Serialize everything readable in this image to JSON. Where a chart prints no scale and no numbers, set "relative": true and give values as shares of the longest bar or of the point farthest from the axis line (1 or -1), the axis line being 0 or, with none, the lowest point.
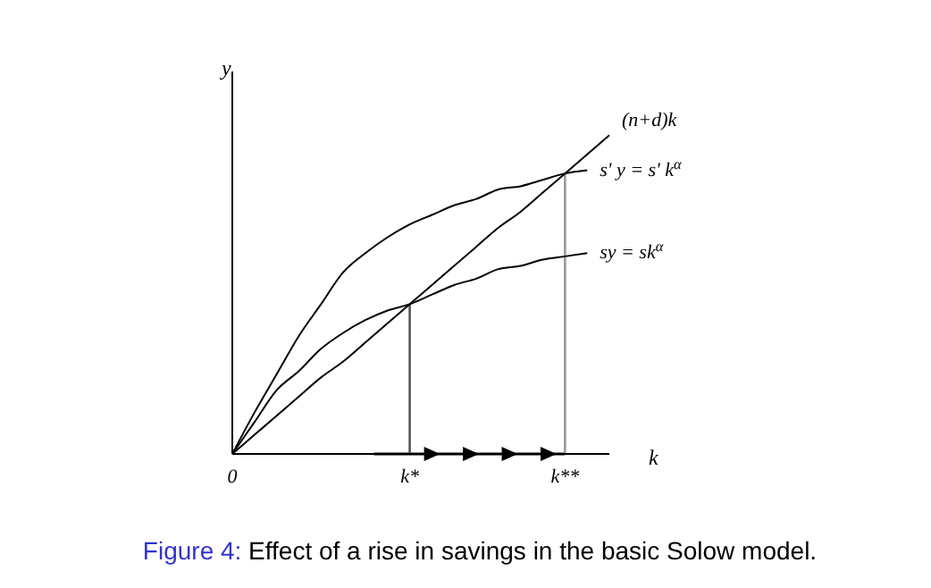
{
  "chart_data": {
    "type": "line",
    "relative": true,
    "xlabel": "k",
    "ylabel": "y",
    "categories": [
      "0",
      null,
      null,
      null,
      null,
      null,
      null,
      null,
      "k*",
      null,
      null,
      null,
      null,
      null,
      null,
      "k**",
      null,
      null
    ],
    "tick_labels": "x",
    "marker": "none",
    "line_style": "solid",
    "series": [
      {
        "name": "(n+d)k",
        "color": "#000000",
        "values": [
          0,
          0.06,
          0.12,
          0.18,
          0.24,
          0.29,
          0.35,
          0.41,
          0.47,
          0.53,
          0.59,
          0.65,
          0.71,
          0.76,
          0.82,
          0.88,
          0.94,
          1
        ]
      },
      {
        "name": "s' y = s' k$^{α}$",
        "color": "#000000",
        "values": [
          0,
          0.13,
          0.25,
          0.37,
          0.47,
          0.57,
          0.63,
          0.68,
          0.72,
          0.75,
          0.78,
          0.8,
          0.83,
          0.84,
          0.86,
          0.88,
          0.89,
          null
        ]
      },
      {
        "name": "sy = sk$^{α}$",
        "color": "#000000",
        "values": [
          0,
          0.1,
          0.2,
          0.26,
          0.33,
          0.38,
          0.42,
          0.45,
          0.47,
          0.5,
          0.53,
          0.55,
          0.58,
          0.59,
          0.61,
          0.62,
          0.63,
          null
        ]
      }
    ],
    "ref_lines": [
      {
        "axis": "x",
        "value": "k*",
        "color": "#555555"
      },
      {
        "axis": "x",
        "value": "k**",
        "color": "#999999"
      }
    ],
    "annotations": [
      "Figure 4: Effect of a rise in savings in the basic Solow model."
    ]
  }
}
